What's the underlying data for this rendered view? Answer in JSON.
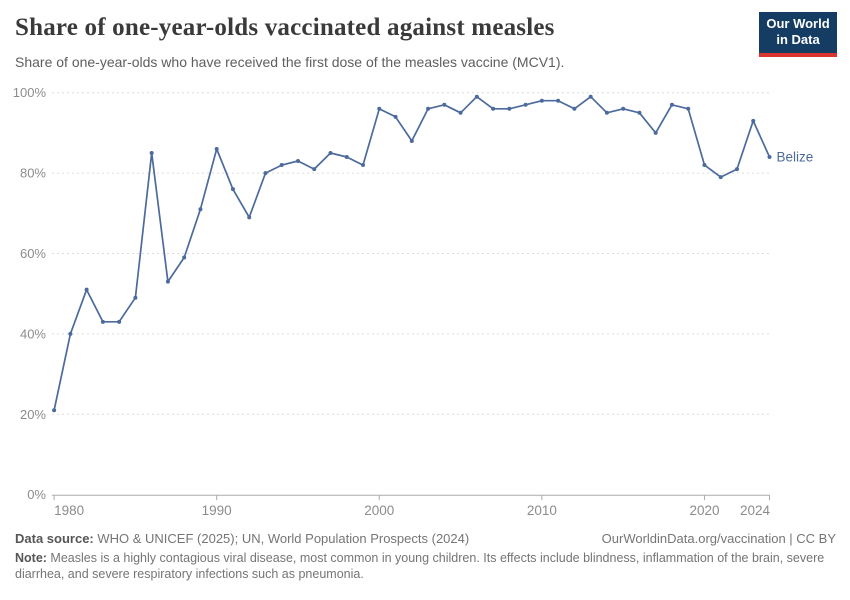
{
  "header": {
    "title": "Share of one-year-olds vaccinated against measles",
    "subtitle": "Share of one-year-olds who have received the first dose of the measles vaccine (MCV1).",
    "logo_line1": "Our World",
    "logo_line2": "in Data",
    "logo_bg_color": "#153d63",
    "logo_accent_color": "#d8352e"
  },
  "chart_data": {
    "type": "line",
    "title": "Share of one-year-olds vaccinated against measles",
    "xlabel": "",
    "ylabel": "",
    "ylim": [
      0,
      100
    ],
    "yticks": [
      0,
      20,
      40,
      60,
      80,
      100
    ],
    "ytick_suffix": "%",
    "xticks": [
      1980,
      1990,
      2000,
      2010,
      2020,
      2024
    ],
    "grid": "horizontal-dashed",
    "legend": "end-of-line-label",
    "x": [
      1980,
      1981,
      1982,
      1983,
      1984,
      1985,
      1986,
      1987,
      1988,
      1989,
      1990,
      1991,
      1992,
      1993,
      1994,
      1995,
      1996,
      1997,
      1998,
      1999,
      2000,
      2001,
      2002,
      2003,
      2004,
      2005,
      2006,
      2007,
      2008,
      2009,
      2010,
      2011,
      2012,
      2013,
      2014,
      2015,
      2016,
      2017,
      2018,
      2019,
      2020,
      2021,
      2022,
      2023,
      2024
    ],
    "series": [
      {
        "name": "Belize",
        "color": "#4c6a9c",
        "values": [
          21,
          40,
          51,
          43,
          43,
          49,
          85,
          53,
          59,
          71,
          86,
          76,
          69,
          80,
          82,
          83,
          81,
          85,
          84,
          82,
          96,
          94,
          88,
          96,
          97,
          95,
          99,
          96,
          96,
          97,
          98,
          98,
          96,
          99,
          95,
          96,
          95,
          90,
          97,
          96,
          82,
          79,
          81,
          93,
          84
        ]
      }
    ],
    "axis_color": "#ababab",
    "gridline_color": "#dcdcdc",
    "tick_label_color": "#8c8c8c"
  },
  "footer": {
    "source_label": "Data source:",
    "source_text": " WHO & UNICEF (2025); UN, World Population Prospects (2024)",
    "license_text": "OurWorldinData.org/vaccination | CC BY",
    "note_label": "Note:",
    "note_text": " Measles is a highly contagious viral disease, most common in young children. Its effects include blindness, inflammation of the brain, severe diarrhea, and severe respiratory infections such as pneumonia."
  }
}
